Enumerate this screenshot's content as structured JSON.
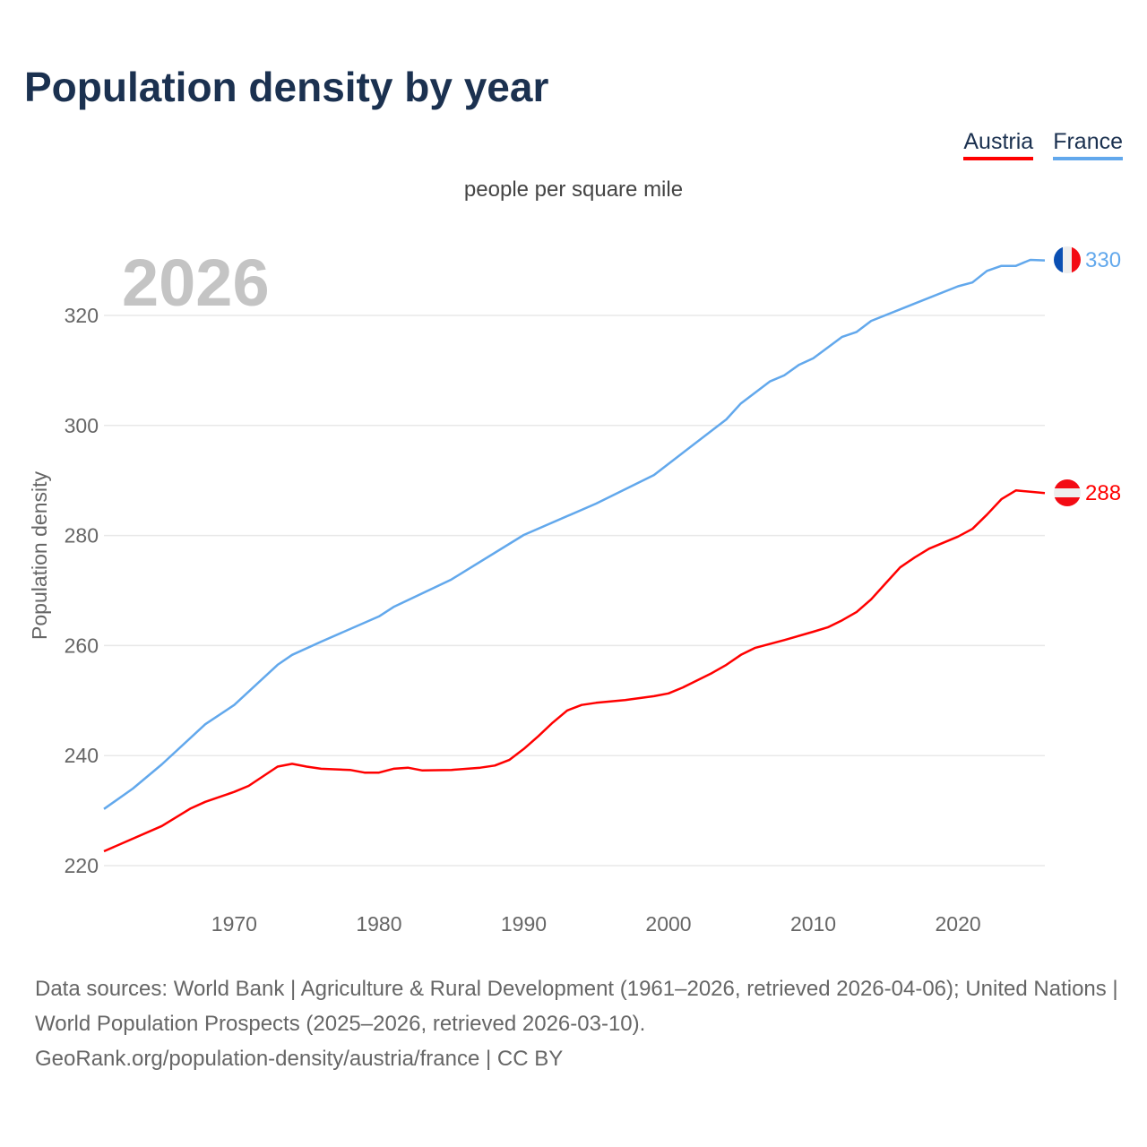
{
  "title": "Population density by year",
  "legend": [
    {
      "label": "Austria",
      "color": "#ff0000"
    },
    {
      "label": "France",
      "color": "#62a8ec"
    }
  ],
  "subtitle": "people per square mile",
  "year_watermark": "2026",
  "footer": {
    "line1": "Data sources: World Bank | Agriculture & Rural Development (1961–2026, retrieved 2026-04-06); United Nations | World Population Prospects (2025–2026, retrieved 2026-03-10).",
    "line2": "GeoRank.org/population-density/austria/france | CC BY"
  },
  "chart_data": {
    "type": "line",
    "title": "Population density by year",
    "xlabel": "",
    "ylabel": "Population density",
    "xlim": [
      1961,
      2026
    ],
    "ylim": [
      216,
      334
    ],
    "xticks": [
      1970,
      1980,
      1990,
      2000,
      2010,
      2020
    ],
    "yticks": [
      220,
      240,
      260,
      280,
      300,
      320
    ],
    "grid": true,
    "legend_position": "top-right",
    "series": [
      {
        "name": "Austria",
        "color": "#ff0000",
        "end_label": "288",
        "x": [
          1961,
          1965,
          1967,
          1968,
          1970,
          1971,
          1973,
          1974,
          1975,
          1976,
          1978,
          1979,
          1980,
          1981,
          1982,
          1983,
          1985,
          1987,
          1988,
          1989,
          1990,
          1991,
          1992,
          1993,
          1994,
          1995,
          1997,
          1999,
          2000,
          2001,
          2003,
          2004,
          2005,
          2006,
          2008,
          2010,
          2011,
          2012,
          2013,
          2014,
          2015,
          2016,
          2017,
          2018,
          2020,
          2021,
          2022,
          2023,
          2024,
          2026
        ],
        "y": [
          222.6,
          227.2,
          230.4,
          231.6,
          233.4,
          234.5,
          238.0,
          238.5,
          238.0,
          237.6,
          237.4,
          236.9,
          236.9,
          237.6,
          237.8,
          237.3,
          237.4,
          237.8,
          238.2,
          239.2,
          241.2,
          243.5,
          246.0,
          248.2,
          249.2,
          249.6,
          250.1,
          250.8,
          251.3,
          252.4,
          255.0,
          256.5,
          258.3,
          259.6,
          261.0,
          262.5,
          263.3,
          264.6,
          266.1,
          268.4,
          271.3,
          274.2,
          276.0,
          277.6,
          279.8,
          281.2,
          283.8,
          286.6,
          288.2,
          287.7
        ]
      },
      {
        "name": "France",
        "color": "#62a8ec",
        "end_label": "330",
        "x": [
          1961,
          1963,
          1965,
          1968,
          1970,
          1973,
          1974,
          1976,
          1980,
          1981,
          1985,
          1990,
          1995,
          1999,
          2004,
          2005,
          2007,
          2008,
          2009,
          2010,
          2012,
          2013,
          2014,
          2020,
          2021,
          2022,
          2023,
          2024,
          2025,
          2026
        ],
        "y": [
          230.3,
          234.0,
          238.4,
          245.7,
          249.2,
          256.5,
          258.3,
          260.7,
          265.3,
          267.0,
          272.0,
          280.1,
          285.8,
          291.0,
          301.1,
          304.0,
          308.0,
          309.1,
          311.0,
          312.2,
          316.1,
          317.0,
          319.0,
          325.3,
          326.0,
          328.1,
          329.0,
          329.0,
          330.1,
          330.0
        ]
      }
    ]
  }
}
